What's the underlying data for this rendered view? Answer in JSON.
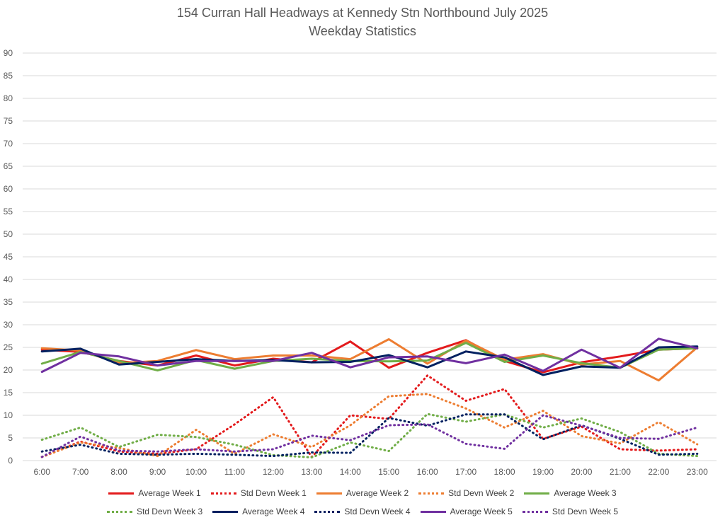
{
  "chart_data": {
    "type": "line",
    "title": "154 Curran Hall Headways at Kennedy Stn Northbound July 2025",
    "subtitle": "Weekday Statistics",
    "xlabel": "",
    "ylabel": "",
    "ylim": [
      0,
      90
    ],
    "yticks": [
      0,
      5,
      10,
      15,
      20,
      25,
      30,
      35,
      40,
      45,
      50,
      55,
      60,
      65,
      70,
      75,
      80,
      85,
      90
    ],
    "grid": true,
    "legend_position": "bottom",
    "categories": [
      "6:00",
      "7:00",
      "8:00",
      "9:00",
      "10:00",
      "11:00",
      "12:00",
      "13:00",
      "14:00",
      "15:00",
      "16:00",
      "17:00",
      "18:00",
      "19:00",
      "20:00",
      "21:00",
      "22:00",
      "23:00"
    ],
    "series": [
      {
        "name": "Average Week 1",
        "color": "#e31a1c",
        "style": "solid",
        "values": [
          24.5,
          24.0,
          22.0,
          21.0,
          23.2,
          21.0,
          22.5,
          21.7,
          26.3,
          20.5,
          23.8,
          26.6,
          22.0,
          19.5,
          21.7,
          23.0,
          24.5,
          24.8
        ]
      },
      {
        "name": "Std Devn Week 1",
        "color": "#e31a1c",
        "style": "dotted",
        "values": [
          0.8,
          4.2,
          2.0,
          1.5,
          2.5,
          8.0,
          14.0,
          0.8,
          10.0,
          9.2,
          18.8,
          13.2,
          15.8,
          4.8,
          7.5,
          2.5,
          2.2,
          2.5
        ]
      },
      {
        "name": "Average Week 2",
        "color": "#ed7d31",
        "style": "solid",
        "values": [
          24.8,
          24.3,
          21.5,
          22.0,
          24.4,
          22.4,
          23.2,
          23.2,
          22.4,
          26.8,
          21.4,
          26.5,
          22.3,
          23.5,
          21.2,
          22.0,
          17.7,
          25.0
        ]
      },
      {
        "name": "Std Devn Week 2",
        "color": "#ed7d31",
        "style": "dotted",
        "values": [
          0.8,
          4.0,
          2.8,
          1.0,
          6.8,
          1.5,
          5.8,
          3.0,
          7.8,
          14.2,
          14.7,
          11.5,
          7.3,
          11.0,
          5.4,
          3.8,
          8.5,
          3.6
        ]
      },
      {
        "name": "Average Week 3",
        "color": "#70ad47",
        "style": "solid",
        "values": [
          21.4,
          24.0,
          22.0,
          19.9,
          22.2,
          20.3,
          22.0,
          22.5,
          22.0,
          21.9,
          22.1,
          26.0,
          21.8,
          23.2,
          21.5,
          20.5,
          24.5,
          24.8
        ]
      },
      {
        "name": "Std Devn Week 3",
        "color": "#70ad47",
        "style": "dotted",
        "values": [
          4.6,
          7.3,
          3.0,
          5.7,
          5.2,
          3.5,
          1.2,
          0.7,
          4.0,
          2.1,
          10.3,
          8.6,
          10.2,
          7.3,
          9.3,
          6.3,
          1.5,
          1.0
        ]
      },
      {
        "name": "Average Week 4",
        "color": "#002060",
        "style": "solid",
        "values": [
          24.1,
          24.7,
          21.2,
          21.8,
          22.4,
          22.0,
          22.2,
          21.7,
          21.8,
          23.3,
          20.6,
          24.1,
          22.8,
          18.9,
          20.8,
          20.5,
          25.0,
          25.2
        ]
      },
      {
        "name": "Std Devn Week 4",
        "color": "#002060",
        "style": "dotted",
        "values": [
          2.0,
          3.5,
          1.5,
          1.3,
          1.5,
          1.3,
          1.0,
          1.8,
          1.7,
          9.4,
          7.7,
          10.2,
          10.2,
          4.7,
          7.8,
          4.8,
          1.3,
          1.5
        ]
      },
      {
        "name": "Average Week 5",
        "color": "#7030a0",
        "style": "solid",
        "values": [
          19.6,
          23.8,
          23.0,
          21.0,
          22.0,
          22.0,
          22.0,
          23.8,
          20.6,
          22.8,
          23.0,
          21.5,
          23.4,
          19.8,
          24.5,
          20.5,
          26.9,
          24.8
        ]
      },
      {
        "name": "Std Devn Week 5",
        "color": "#7030a0",
        "style": "dotted",
        "values": [
          0.8,
          5.3,
          2.2,
          2.0,
          2.5,
          2.0,
          2.5,
          5.5,
          4.5,
          7.8,
          8.0,
          3.7,
          2.6,
          10.0,
          7.7,
          5.0,
          4.8,
          7.3
        ]
      }
    ]
  }
}
